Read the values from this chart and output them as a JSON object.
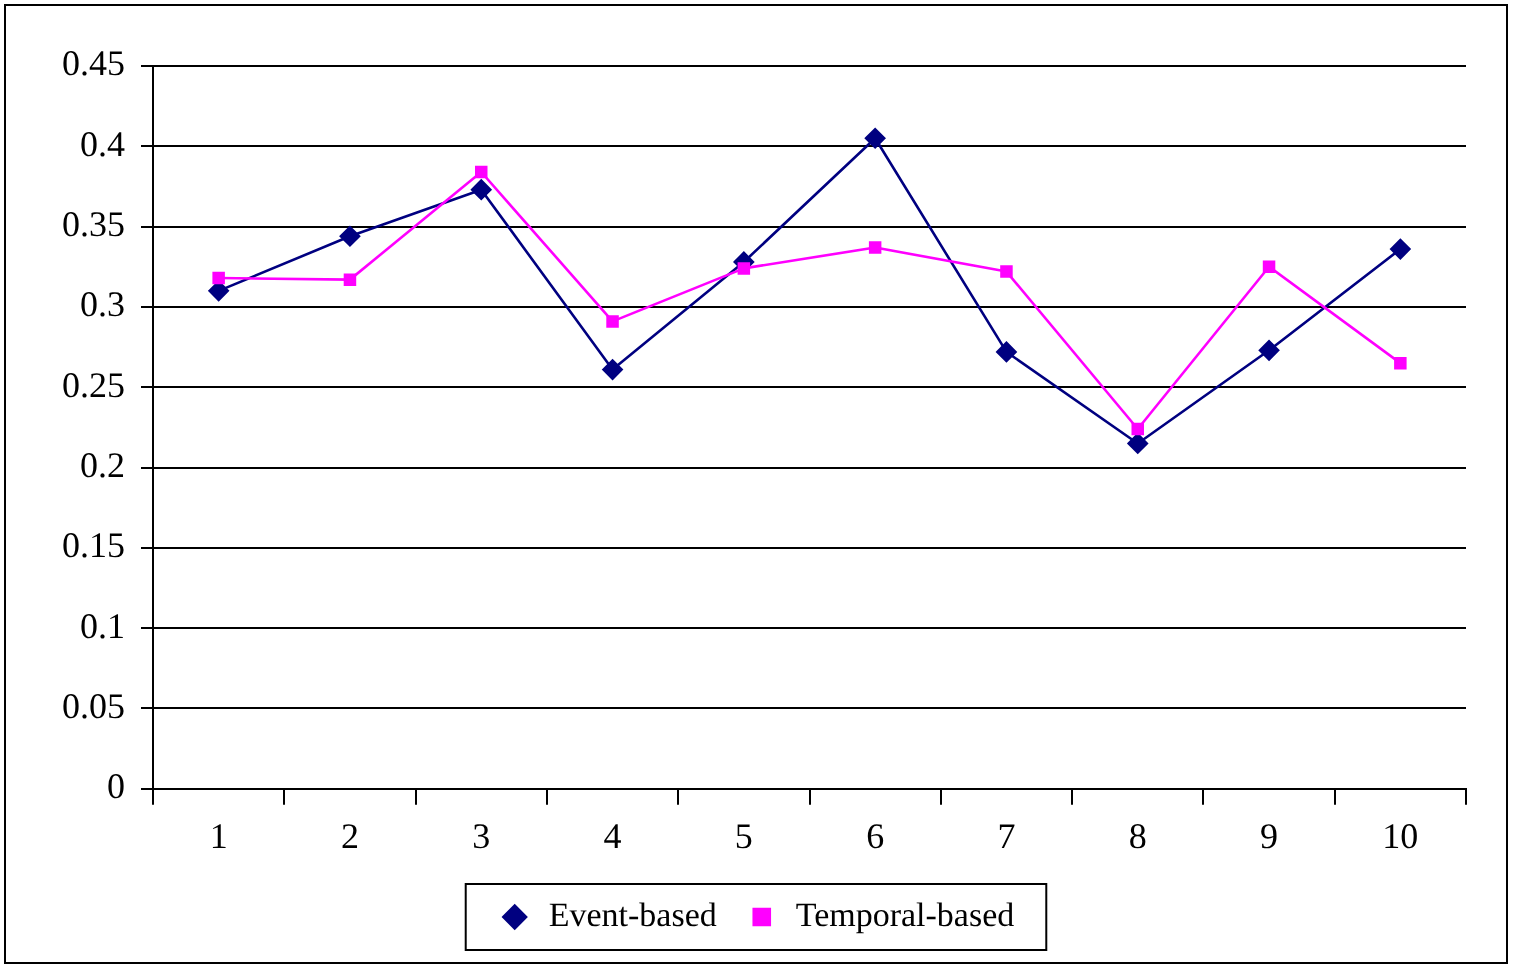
{
  "chart_data": {
    "type": "line",
    "categories": [
      "1",
      "2",
      "3",
      "4",
      "5",
      "6",
      "7",
      "8",
      "9",
      "10"
    ],
    "series": [
      {
        "name": "Event-based",
        "color": "#000080",
        "marker": "diamond",
        "values": [
          0.31,
          0.344,
          0.373,
          0.261,
          0.328,
          0.405,
          0.272,
          0.215,
          0.273,
          0.336
        ]
      },
      {
        "name": "Temporal-based",
        "color": "#ff00ff",
        "marker": "square",
        "values": [
          0.318,
          0.317,
          0.384,
          0.291,
          0.324,
          0.337,
          0.322,
          0.224,
          0.325,
          0.265
        ]
      }
    ],
    "ylim": [
      0,
      0.45
    ],
    "yticks": [
      0,
      0.05,
      0.1,
      0.15,
      0.2,
      0.25,
      0.3,
      0.35,
      0.4,
      0.45
    ],
    "grid": "y",
    "legend": "bottom",
    "line_style": "solid"
  }
}
